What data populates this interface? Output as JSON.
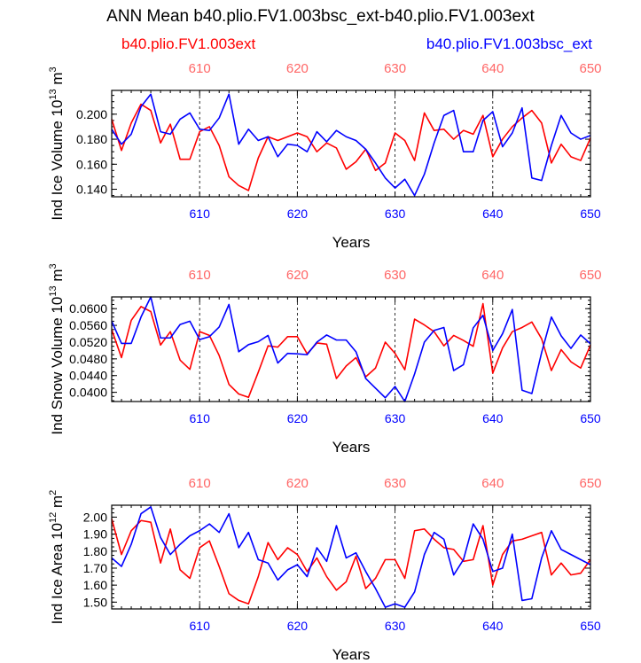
{
  "title": "ANN Mean b40.plio.FV1.003bsc_ext-b40.plio.FV1.003ext",
  "legend": {
    "red": "b40.plio.FV1.003ext",
    "blue": "b40.plio.FV1.003bsc_ext"
  },
  "colors": {
    "red": "#ff0000",
    "blue": "#0000ff",
    "topticks": "#ff6666"
  },
  "chart_data": [
    {
      "type": "line",
      "ylabel_main": "Ind Ice Volume 10",
      "ylabel_exp": "13",
      "ylabel_unit": " m",
      "ylabel_unit_exp": "3",
      "xlabel": "Years",
      "xlim": [
        601,
        650
      ],
      "ylim": [
        0.134,
        0.219
      ],
      "yticks": [
        0.14,
        0.16,
        0.18,
        0.2
      ],
      "ytick_labels": [
        "0.140",
        "0.160",
        "0.180",
        "0.200"
      ],
      "xticks": [
        610,
        620,
        630,
        640,
        650
      ],
      "xtick_labels": [
        "610",
        "620",
        "630",
        "640",
        "650"
      ],
      "x": [
        601,
        602,
        603,
        604,
        605,
        606,
        607,
        608,
        609,
        610,
        611,
        612,
        613,
        614,
        615,
        616,
        617,
        618,
        619,
        620,
        621,
        622,
        623,
        624,
        625,
        626,
        627,
        628,
        629,
        630,
        631,
        632,
        633,
        634,
        635,
        636,
        637,
        638,
        639,
        640,
        641,
        642,
        643,
        644,
        645,
        646,
        647,
        648,
        649,
        650
      ],
      "series": [
        {
          "name": "b40.plio.FV1.003ext",
          "color": "#ff0000",
          "values": [
            0.196,
            0.171,
            0.193,
            0.208,
            0.203,
            0.177,
            0.192,
            0.164,
            0.164,
            0.186,
            0.19,
            0.175,
            0.15,
            0.143,
            0.139,
            0.165,
            0.182,
            0.179,
            0.182,
            0.185,
            0.182,
            0.17,
            0.177,
            0.173,
            0.156,
            0.162,
            0.172,
            0.155,
            0.161,
            0.185,
            0.179,
            0.163,
            0.201,
            0.187,
            0.188,
            0.18,
            0.187,
            0.184,
            0.199,
            0.166,
            0.18,
            0.19,
            0.197,
            0.203,
            0.193,
            0.161,
            0.176,
            0.166,
            0.163,
            0.181
          ]
        },
        {
          "name": "b40.plio.FV1.003bsc_ext",
          "color": "#0000ff",
          "values": [
            0.188,
            0.176,
            0.184,
            0.206,
            0.216,
            0.186,
            0.184,
            0.196,
            0.201,
            0.188,
            0.187,
            0.197,
            0.216,
            0.176,
            0.188,
            0.179,
            0.182,
            0.166,
            0.176,
            0.175,
            0.17,
            0.186,
            0.178,
            0.187,
            0.182,
            0.179,
            0.172,
            0.161,
            0.149,
            0.141,
            0.148,
            0.135,
            0.152,
            0.177,
            0.199,
            0.203,
            0.17,
            0.17,
            0.195,
            0.202,
            0.174,
            0.185,
            0.205,
            0.149,
            0.147,
            0.175,
            0.199,
            0.185,
            0.18,
            0.183
          ]
        }
      ]
    },
    {
      "type": "line",
      "ylabel_main": "Ind Snow Volume 10",
      "ylabel_exp": "13",
      "ylabel_unit": " m",
      "ylabel_unit_exp": "3",
      "xlabel": "Years",
      "xlim": [
        601,
        650
      ],
      "ylim": [
        0.0378,
        0.0628
      ],
      "yticks": [
        0.04,
        0.044,
        0.048,
        0.052,
        0.056,
        0.06
      ],
      "ytick_labels": [
        "0.0400",
        "0.0440",
        "0.0480",
        "0.0520",
        "0.0560",
        "0.0600"
      ],
      "xticks": [
        610,
        620,
        630,
        640,
        650
      ],
      "xtick_labels": [
        "610",
        "620",
        "630",
        "640",
        "650"
      ],
      "x": [
        601,
        602,
        603,
        604,
        605,
        606,
        607,
        608,
        609,
        610,
        611,
        612,
        613,
        614,
        615,
        616,
        617,
        618,
        619,
        620,
        621,
        622,
        623,
        624,
        625,
        626,
        627,
        628,
        629,
        630,
        631,
        632,
        633,
        634,
        635,
        636,
        637,
        638,
        639,
        640,
        641,
        642,
        643,
        644,
        645,
        646,
        647,
        648,
        649,
        650
      ],
      "series": [
        {
          "name": "b40.plio.FV1.003ext",
          "color": "#ff0000",
          "values": [
            0.055,
            0.0483,
            0.0572,
            0.0605,
            0.0593,
            0.0513,
            0.0545,
            0.0477,
            0.0455,
            0.0545,
            0.0536,
            0.0488,
            0.0419,
            0.0396,
            0.0388,
            0.0448,
            0.0511,
            0.0508,
            0.0533,
            0.0533,
            0.0492,
            0.0518,
            0.0515,
            0.0433,
            0.0463,
            0.0483,
            0.0437,
            0.0458,
            0.052,
            0.0493,
            0.0454,
            0.0575,
            0.0561,
            0.0545,
            0.0511,
            0.0536,
            0.0524,
            0.051,
            0.0612,
            0.0446,
            0.0506,
            0.0545,
            0.0555,
            0.0568,
            0.0528,
            0.0452,
            0.0502,
            0.0473,
            0.0458,
            0.0513
          ]
        },
        {
          "name": "b40.plio.FV1.003bsc_ext",
          "color": "#0000ff",
          "values": [
            0.057,
            0.0517,
            0.0517,
            0.058,
            0.0628,
            0.053,
            0.053,
            0.0562,
            0.057,
            0.0526,
            0.0533,
            0.0556,
            0.061,
            0.0497,
            0.0514,
            0.0521,
            0.0536,
            0.047,
            0.0493,
            0.0492,
            0.049,
            0.052,
            0.0537,
            0.0525,
            0.0525,
            0.0497,
            0.0433,
            0.041,
            0.0387,
            0.0414,
            0.0378,
            0.0444,
            0.052,
            0.0548,
            0.0555,
            0.0452,
            0.0466,
            0.0554,
            0.0584,
            0.05,
            0.054,
            0.0598,
            0.0405,
            0.0397,
            0.0495,
            0.058,
            0.0535,
            0.0505,
            0.0537,
            0.0516
          ]
        }
      ]
    },
    {
      "type": "line",
      "ylabel_main": "Ind Ice Area 10",
      "ylabel_exp": "12",
      "ylabel_unit": " m",
      "ylabel_unit_exp": "2",
      "xlabel": "Years",
      "xlim": [
        601,
        650
      ],
      "ylim": [
        1.46,
        2.07
      ],
      "yticks": [
        1.5,
        1.6,
        1.7,
        1.8,
        1.9,
        2.0
      ],
      "ytick_labels": [
        "1.50",
        "1.60",
        "1.70",
        "1.80",
        "1.90",
        "2.00"
      ],
      "xticks": [
        610,
        620,
        630,
        640,
        650
      ],
      "xtick_labels": [
        "610",
        "620",
        "630",
        "640",
        "650"
      ],
      "x": [
        601,
        602,
        603,
        604,
        605,
        606,
        607,
        608,
        609,
        610,
        611,
        612,
        613,
        614,
        615,
        616,
        617,
        618,
        619,
        620,
        621,
        622,
        623,
        624,
        625,
        626,
        627,
        628,
        629,
        630,
        631,
        632,
        633,
        634,
        635,
        636,
        637,
        638,
        639,
        640,
        641,
        642,
        643,
        644,
        645,
        646,
        647,
        648,
        649,
        650
      ],
      "series": [
        {
          "name": "b40.plio.FV1.003ext",
          "color": "#ff0000",
          "values": [
            1.99,
            1.78,
            1.92,
            1.98,
            1.97,
            1.73,
            1.93,
            1.69,
            1.64,
            1.82,
            1.86,
            1.71,
            1.55,
            1.51,
            1.49,
            1.65,
            1.85,
            1.75,
            1.82,
            1.78,
            1.68,
            1.76,
            1.65,
            1.57,
            1.62,
            1.77,
            1.58,
            1.64,
            1.75,
            1.75,
            1.64,
            1.92,
            1.93,
            1.87,
            1.82,
            1.81,
            1.74,
            1.75,
            1.95,
            1.6,
            1.78,
            1.86,
            1.87,
            1.89,
            1.91,
            1.66,
            1.73,
            1.66,
            1.67,
            1.75
          ]
        },
        {
          "name": "b40.plio.FV1.003bsc_ext",
          "color": "#0000ff",
          "values": [
            1.76,
            1.71,
            1.84,
            2.02,
            2.06,
            1.88,
            1.78,
            1.84,
            1.89,
            1.92,
            1.96,
            1.91,
            2.02,
            1.82,
            1.91,
            1.75,
            1.73,
            1.63,
            1.69,
            1.72,
            1.65,
            1.82,
            1.74,
            1.95,
            1.76,
            1.79,
            1.68,
            1.58,
            1.47,
            1.49,
            1.47,
            1.56,
            1.78,
            1.91,
            1.87,
            1.66,
            1.75,
            1.96,
            1.87,
            1.68,
            1.7,
            1.9,
            1.51,
            1.52,
            1.76,
            1.92,
            1.81,
            1.78,
            1.75,
            1.72
          ]
        }
      ]
    }
  ]
}
